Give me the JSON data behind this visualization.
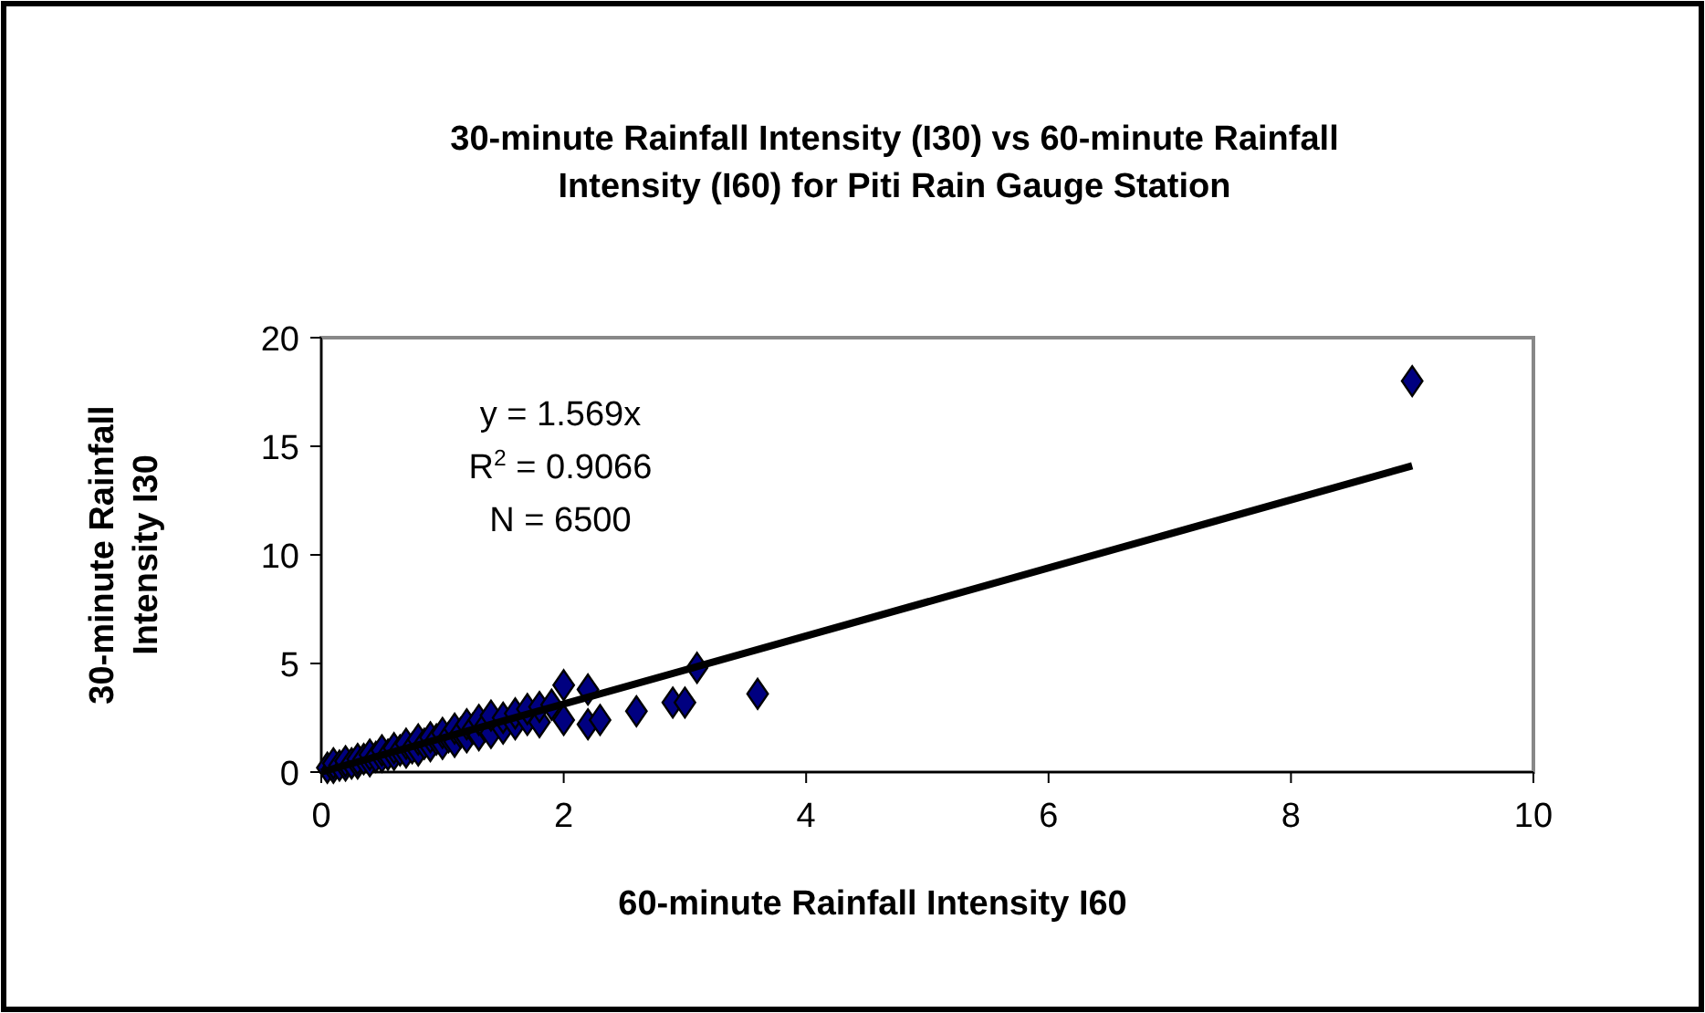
{
  "chart_data": {
    "type": "scatter",
    "title": "30-minute Rainfall Intensity (I30) vs 60-minute Rainfall Intensity (I60) for Piti Rain Gauge Station",
    "xlabel": "60-minute Rainfall Intensity I60",
    "ylabel": "30-minute Rainfall Intensity I30",
    "xlim": [
      0,
      10
    ],
    "ylim": [
      0,
      20
    ],
    "xticks": [
      0,
      2,
      4,
      6,
      8,
      10
    ],
    "yticks": [
      0,
      5,
      10,
      15,
      20
    ],
    "grid": false,
    "series": [
      {
        "color": "#000080",
        "marker": "diamond",
        "x": [
          0.05,
          0.1,
          0.1,
          0.15,
          0.2,
          0.2,
          0.25,
          0.3,
          0.3,
          0.35,
          0.4,
          0.4,
          0.45,
          0.5,
          0.5,
          0.55,
          0.6,
          0.6,
          0.65,
          0.7,
          0.7,
          0.75,
          0.8,
          0.8,
          0.85,
          0.9,
          0.9,
          0.95,
          1.0,
          1.0,
          1.05,
          1.1,
          1.1,
          1.15,
          1.2,
          1.2,
          1.25,
          1.3,
          1.3,
          1.35,
          1.4,
          1.4,
          1.5,
          1.5,
          1.6,
          1.6,
          1.7,
          1.7,
          1.8,
          1.8,
          1.9,
          2.0,
          2.0,
          2.2,
          2.2,
          2.3,
          2.6,
          2.9,
          3.0,
          3.1,
          3.6,
          9.0
        ],
        "values": [
          0.2,
          0.2,
          0.4,
          0.3,
          0.3,
          0.5,
          0.4,
          0.4,
          0.6,
          0.6,
          0.5,
          0.8,
          0.7,
          0.7,
          1.0,
          0.8,
          0.8,
          1.1,
          1.0,
          0.9,
          1.3,
          1.1,
          1.0,
          1.5,
          1.3,
          1.2,
          1.6,
          1.5,
          1.3,
          1.8,
          1.6,
          1.4,
          2.0,
          1.8,
          1.6,
          2.2,
          2.0,
          1.7,
          2.4,
          2.1,
          1.8,
          2.6,
          2.0,
          2.5,
          2.2,
          2.7,
          2.4,
          2.9,
          2.3,
          3.0,
          3.1,
          4.0,
          2.4,
          3.8,
          2.2,
          2.4,
          2.8,
          3.2,
          3.2,
          4.8,
          3.6,
          18.0
        ]
      },
      {
        "type": "line",
        "color": "#000000",
        "x": [
          0,
          9
        ],
        "values": [
          0,
          14.1
        ],
        "marker": "none"
      }
    ],
    "annotations": [
      "y = 1.569x",
      "R$^{2}$ = 0.9066",
      "N = 6500"
    ]
  }
}
